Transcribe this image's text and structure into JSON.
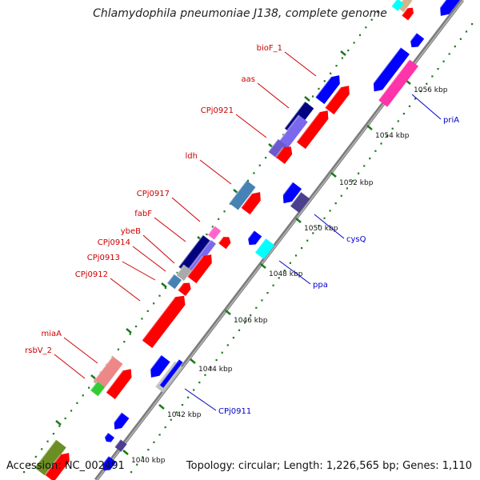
{
  "title": "Chlamydophila pneumoniae J138, complete genome",
  "footer": {
    "accession": "Accession: NC_002491",
    "summary": "Topology: circular; Length: 1,226,565 bp; Genes: 1,110"
  },
  "colors": {
    "backbone": "#8a8a8a",
    "tick": "#1a7a1a",
    "label_forward": "#cc0000",
    "label_reverse": "#0000cc",
    "tick_label": "#111111"
  },
  "ticks": [
    {
      "label": "1040 kbp"
    },
    {
      "label": "1042 kbp"
    },
    {
      "label": "1044 kbp"
    },
    {
      "label": "1046 kbp"
    },
    {
      "label": "1048 kbp"
    },
    {
      "label": "1050 kbp"
    },
    {
      "label": "1052 kbp"
    },
    {
      "label": "1054 kbp"
    },
    {
      "label": "1056 kbp"
    }
  ],
  "genes_forward": [
    {
      "label": "bioF_1",
      "color": "#0000ff"
    },
    {
      "label": "aas",
      "color": "#ff0000"
    },
    {
      "label": "CPj0921",
      "color": "#ff0000"
    },
    {
      "label": "ldh",
      "color": "#ff0000"
    },
    {
      "label": "CPj0917",
      "color": "#ff66cc"
    },
    {
      "label": "fabF",
      "color": "#000080"
    },
    {
      "label": "ybeB",
      "color": "#aaaaaa"
    },
    {
      "label": "CPj0914",
      "color": "#ff0000"
    },
    {
      "label": "CPj0913",
      "color": "#ff0000"
    },
    {
      "label": "CPj0912",
      "color": "#ff0000"
    },
    {
      "label": "miaA",
      "color": "#ee8888"
    },
    {
      "label": "rsbV_2",
      "color": "#33cc33"
    }
  ],
  "genes_reverse": [
    {
      "label": "priA",
      "color": "#ff33aa"
    },
    {
      "label": "cysQ",
      "color": "#4b3f8f"
    },
    {
      "label": "ppa",
      "color": "#00ffff"
    },
    {
      "label": "CPj0911",
      "color": "#0000ff"
    }
  ]
}
